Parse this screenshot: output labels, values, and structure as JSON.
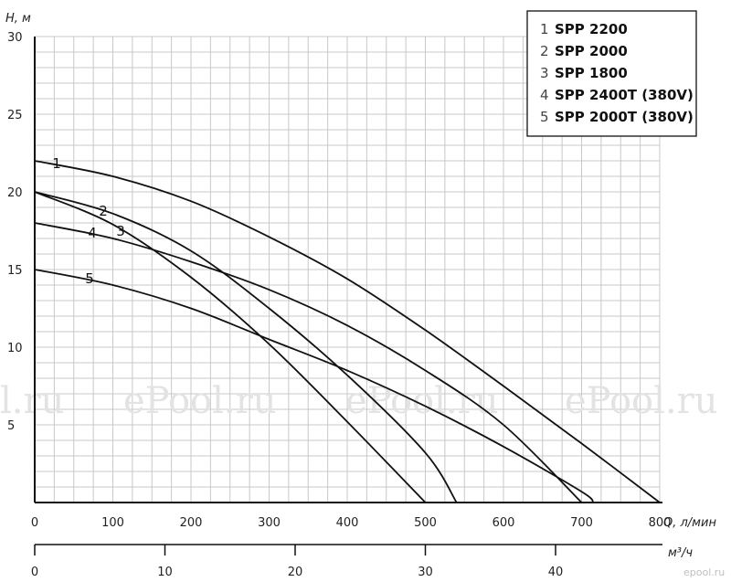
{
  "chart_data": {
    "type": "line",
    "title": "",
    "xlabel": "Q, л/мин",
    "ylabel": "H, м",
    "secondary_xlabel": "м³/ч",
    "xlim": [
      0,
      800
    ],
    "ylim": [
      0,
      30
    ],
    "x_ticks": [
      0,
      100,
      200,
      300,
      400,
      500,
      600,
      700,
      800
    ],
    "y_ticks": [
      5,
      10,
      15,
      20,
      25,
      30
    ],
    "secondary_x_ticks": [
      0,
      10,
      20,
      30,
      40
    ],
    "grid": true,
    "legend_position": "top-right",
    "series": [
      {
        "label_number": "1",
        "name": "SPP 2200",
        "x": [
          0,
          100,
          200,
          300,
          400,
          500,
          600,
          700,
          800
        ],
        "y": [
          22,
          21.0,
          19.4,
          17.1,
          14.4,
          11.1,
          7.5,
          3.8,
          0
        ]
      },
      {
        "label_number": "2",
        "name": "SPP 2000",
        "x": [
          0,
          100,
          200,
          300,
          400,
          500,
          540
        ],
        "y": [
          20,
          18.6,
          16.2,
          12.5,
          8.2,
          3.2,
          0
        ]
      },
      {
        "label_number": "3",
        "name": "SPP 1800",
        "x": [
          0,
          100,
          200,
          300,
          400,
          500
        ],
        "y": [
          20,
          17.9,
          14.5,
          10.2,
          5.2,
          0
        ]
      },
      {
        "label_number": "4",
        "name": "SPP 2400T (380V)",
        "x": [
          0,
          100,
          200,
          300,
          400,
          500,
          600,
          700
        ],
        "y": [
          18,
          17.0,
          15.5,
          13.7,
          11.4,
          8.5,
          5.0,
          0
        ]
      },
      {
        "label_number": "5",
        "name": "SPP 2000T (380V)",
        "x": [
          0,
          100,
          200,
          300,
          400,
          500,
          600,
          700,
          715
        ],
        "y": [
          15,
          14.0,
          12.5,
          10.5,
          8.5,
          6.2,
          3.6,
          0.7,
          0
        ]
      }
    ]
  },
  "watermark": [
    "l.ru",
    "ePool.ru",
    "ePool.ru",
    "ePool.ru"
  ],
  "site_mark": "epool.ru",
  "colors": {
    "curve": "#111111",
    "grid": "#c8c8c8",
    "axis": "#111111",
    "watermark": "#e3e3e3"
  }
}
